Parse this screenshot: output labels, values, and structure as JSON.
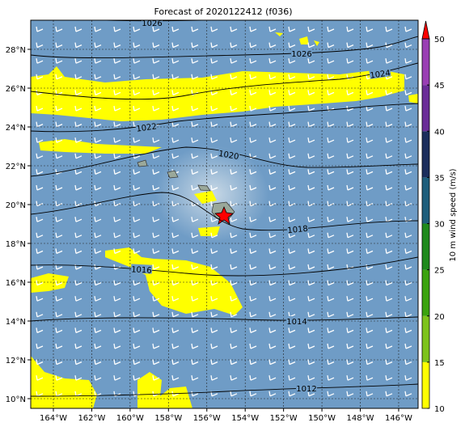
{
  "map": {
    "title": "Forecast of 2020122412 (f036)",
    "lon_ticks": [
      {
        "value": -164,
        "label": "164°W"
      },
      {
        "value": -162,
        "label": "162°W"
      },
      {
        "value": -160,
        "label": "160°W"
      },
      {
        "value": -158,
        "label": "158°W"
      },
      {
        "value": -156,
        "label": "156°W"
      },
      {
        "value": -154,
        "label": "154°W"
      },
      {
        "value": -152,
        "label": "152°W"
      },
      {
        "value": -150,
        "label": "150°W"
      },
      {
        "value": -148,
        "label": "148°W"
      },
      {
        "value": -146,
        "label": "146°W"
      }
    ],
    "lat_ticks": [
      {
        "value": 28,
        "label": "28°N"
      },
      {
        "value": 26,
        "label": "26°N"
      },
      {
        "value": 24,
        "label": "24°N"
      },
      {
        "value": 22,
        "label": "22°N"
      },
      {
        "value": 20,
        "label": "20°N"
      },
      {
        "value": 18,
        "label": "18°N"
      },
      {
        "value": 16,
        "label": "16°N"
      },
      {
        "value": 14,
        "label": "14°N"
      },
      {
        "value": 12,
        "label": "12°N"
      },
      {
        "value": 10,
        "label": "10°N"
      }
    ],
    "colorbar": {
      "label": "10 m wind speed (m/s)",
      "ticks": [
        10,
        15,
        20,
        25,
        30,
        35,
        40,
        45,
        50
      ],
      "colors": [
        "#ffff00",
        "#7dc31b",
        "#3aa30e",
        "#1e8a1c",
        "#1d5e7c",
        "#1b2d5c",
        "#6a2c98",
        "#9a3eb4"
      ],
      "extend_color": "#ff0000"
    },
    "contour_labels": [
      "1026",
      "1026",
      "1024",
      "1022",
      "1020",
      "1018",
      "1016",
      "1014",
      "1012"
    ]
  }
}
